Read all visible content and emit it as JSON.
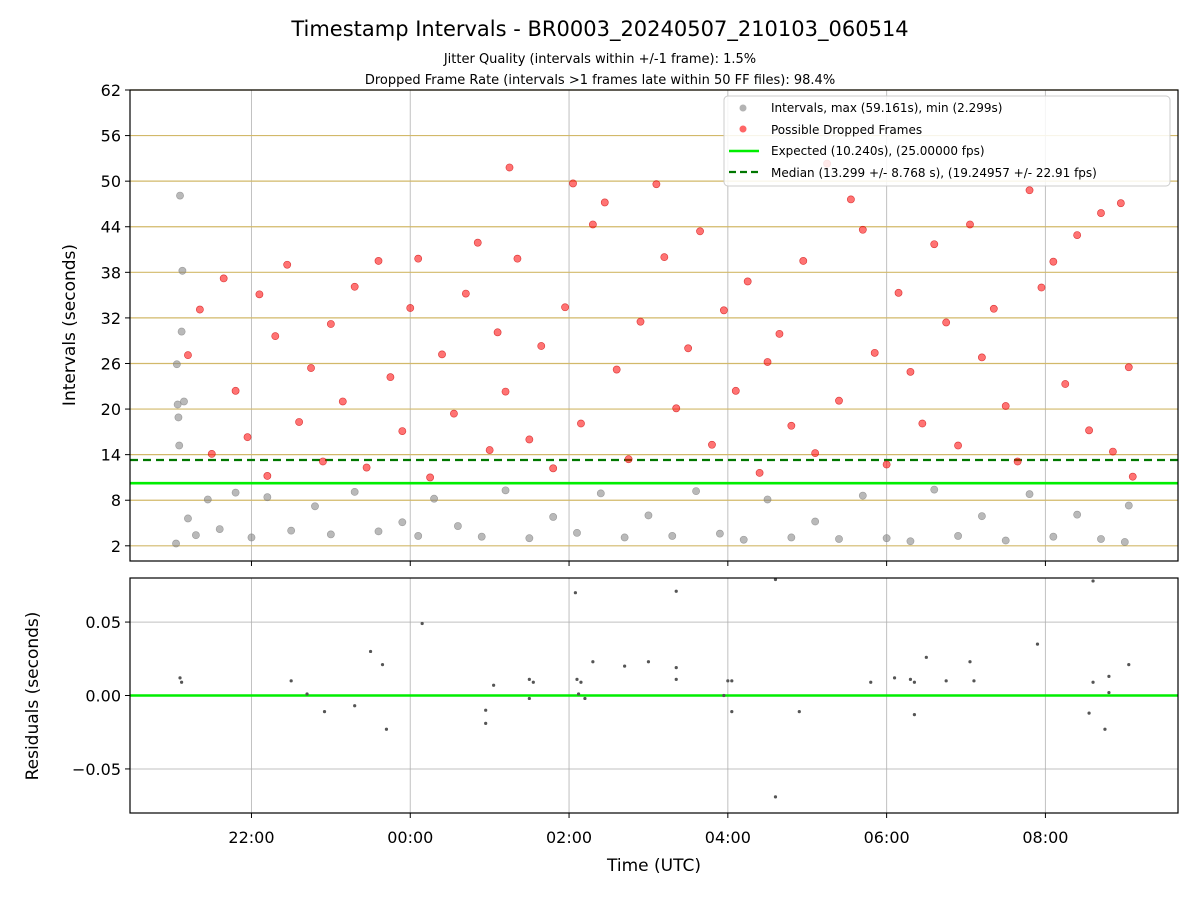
{
  "figure": {
    "title": "Timestamp Intervals - BR0003_20240507_210103_060514",
    "subtitle1": "Jitter Quality (intervals within +/-1 frame): 1.5%",
    "subtitle2": "Dropped Frame Rate (intervals >1 frames late within 50 FF files): 98.4%"
  },
  "chart_data": [
    {
      "type": "scatter",
      "ylabel": "Intervals (seconds)",
      "xlabel": "",
      "x_range_hours": [
        20.47,
        33.67
      ],
      "ylim": [
        0,
        62
      ],
      "yticks": [
        2,
        8,
        14,
        20,
        26,
        32,
        38,
        44,
        50,
        56,
        62
      ],
      "xticks": [
        {
          "value": 22,
          "label": "22:00"
        },
        {
          "value": 24,
          "label": "00:00"
        },
        {
          "value": 26,
          "label": "02:00"
        },
        {
          "value": 28,
          "label": "04:00"
        },
        {
          "value": 30,
          "label": "06:00"
        },
        {
          "value": 32,
          "label": "08:00"
        }
      ],
      "grid": true,
      "legend_position": "top-right",
      "legend": [
        {
          "label": "Intervals, max (59.161s), min (2.299s)",
          "style": "marker",
          "color": "#808080"
        },
        {
          "label": "Possible Dropped Frames",
          "style": "marker",
          "color": "#ff0000"
        },
        {
          "label": "Expected (10.240s), (25.00000 fps)",
          "style": "line",
          "color": "#00ee00"
        },
        {
          "label": "Median (13.299 +/- 8.768 s), (19.24957 +/- 22.91 fps)",
          "style": "dashed",
          "color": "#007700"
        }
      ],
      "reference_lines": {
        "expected": 10.24,
        "median": 13.299
      },
      "series": [
        {
          "name": "Intervals, max (59.161s), min (2.299s)",
          "color": "#808080",
          "points": [
            [
              21.05,
              2.3
            ],
            [
              21.06,
              25.9
            ],
            [
              21.07,
              20.6
            ],
            [
              21.08,
              18.9
            ],
            [
              21.09,
              15.2
            ],
            [
              21.1,
              48.1
            ],
            [
              21.12,
              30.2
            ],
            [
              21.13,
              38.2
            ],
            [
              21.15,
              21.0
            ],
            [
              21.2,
              5.6
            ],
            [
              21.3,
              3.4
            ],
            [
              21.45,
              8.1
            ],
            [
              21.6,
              4.2
            ],
            [
              21.8,
              9.0
            ],
            [
              22.0,
              3.1
            ],
            [
              22.2,
              8.4
            ],
            [
              22.5,
              4.0
            ],
            [
              22.8,
              7.2
            ],
            [
              23.0,
              3.5
            ],
            [
              23.3,
              9.1
            ],
            [
              23.6,
              3.9
            ],
            [
              23.9,
              5.1
            ],
            [
              24.1,
              3.3
            ],
            [
              24.3,
              8.2
            ],
            [
              24.6,
              4.6
            ],
            [
              24.9,
              3.2
            ],
            [
              25.2,
              9.3
            ],
            [
              25.5,
              3.0
            ],
            [
              25.8,
              5.8
            ],
            [
              26.1,
              3.7
            ],
            [
              26.4,
              8.9
            ],
            [
              26.7,
              3.1
            ],
            [
              27.0,
              6.0
            ],
            [
              27.3,
              3.3
            ],
            [
              27.6,
              9.2
            ],
            [
              27.9,
              3.6
            ],
            [
              28.2,
              2.8
            ],
            [
              28.5,
              8.1
            ],
            [
              28.8,
              3.1
            ],
            [
              29.1,
              5.2
            ],
            [
              29.4,
              2.9
            ],
            [
              29.7,
              8.6
            ],
            [
              30.0,
              3.0
            ],
            [
              30.3,
              2.6
            ],
            [
              30.6,
              9.4
            ],
            [
              30.9,
              3.3
            ],
            [
              31.2,
              5.9
            ],
            [
              31.5,
              2.7
            ],
            [
              31.8,
              8.8
            ],
            [
              32.1,
              3.2
            ],
            [
              32.4,
              6.1
            ],
            [
              32.7,
              2.9
            ],
            [
              33.0,
              2.5
            ],
            [
              33.05,
              7.3
            ]
          ]
        },
        {
          "name": "Possible Dropped Frames",
          "color": "#ff0000",
          "points": [
            [
              21.2,
              27.1
            ],
            [
              21.35,
              33.1
            ],
            [
              21.5,
              14.1
            ],
            [
              21.65,
              37.2
            ],
            [
              21.8,
              22.4
            ],
            [
              21.95,
              16.3
            ],
            [
              22.1,
              35.1
            ],
            [
              22.2,
              11.2
            ],
            [
              22.3,
              29.6
            ],
            [
              22.45,
              39.0
            ],
            [
              22.6,
              18.3
            ],
            [
              22.75,
              25.4
            ],
            [
              22.9,
              13.1
            ],
            [
              23.0,
              31.2
            ],
            [
              23.15,
              21.0
            ],
            [
              23.3,
              36.1
            ],
            [
              23.45,
              12.3
            ],
            [
              23.6,
              39.5
            ],
            [
              23.75,
              24.2
            ],
            [
              23.9,
              17.1
            ],
            [
              24.0,
              33.3
            ],
            [
              24.1,
              39.8
            ],
            [
              24.25,
              11.0
            ],
            [
              24.4,
              27.2
            ],
            [
              24.55,
              19.4
            ],
            [
              24.7,
              35.2
            ],
            [
              24.85,
              41.9
            ],
            [
              25.0,
              14.6
            ],
            [
              25.1,
              30.1
            ],
            [
              25.2,
              22.3
            ],
            [
              25.25,
              51.8
            ],
            [
              25.35,
              39.8
            ],
            [
              25.5,
              16.0
            ],
            [
              25.65,
              28.3
            ],
            [
              25.8,
              12.2
            ],
            [
              25.95,
              33.4
            ],
            [
              26.05,
              49.7
            ],
            [
              26.15,
              18.1
            ],
            [
              26.3,
              44.3
            ],
            [
              26.45,
              47.2
            ],
            [
              26.6,
              25.2
            ],
            [
              26.75,
              13.4
            ],
            [
              26.9,
              31.5
            ],
            [
              27.1,
              49.6
            ],
            [
              27.2,
              40.0
            ],
            [
              27.35,
              20.1
            ],
            [
              27.5,
              28.0
            ],
            [
              27.65,
              43.4
            ],
            [
              27.8,
              15.3
            ],
            [
              27.95,
              33.0
            ],
            [
              28.1,
              22.4
            ],
            [
              28.25,
              36.8
            ],
            [
              28.4,
              11.6
            ],
            [
              28.5,
              26.2
            ],
            [
              28.65,
              29.9
            ],
            [
              28.8,
              17.8
            ],
            [
              28.95,
              39.5
            ],
            [
              29.1,
              14.2
            ],
            [
              29.25,
              52.3
            ],
            [
              29.4,
              21.1
            ],
            [
              29.55,
              47.6
            ],
            [
              29.7,
              43.6
            ],
            [
              29.85,
              27.4
            ],
            [
              30.0,
              12.7
            ],
            [
              30.15,
              35.3
            ],
            [
              30.3,
              24.9
            ],
            [
              30.45,
              18.1
            ],
            [
              30.6,
              41.7
            ],
            [
              30.75,
              31.4
            ],
            [
              30.9,
              15.2
            ],
            [
              31.05,
              44.3
            ],
            [
              31.2,
              26.8
            ],
            [
              31.35,
              33.2
            ],
            [
              31.5,
              20.4
            ],
            [
              31.65,
              13.1
            ],
            [
              31.8,
              48.8
            ],
            [
              31.95,
              36.0
            ],
            [
              32.1,
              39.4
            ],
            [
              32.25,
              23.3
            ],
            [
              32.4,
              42.9
            ],
            [
              32.55,
              17.2
            ],
            [
              32.7,
              45.8
            ],
            [
              32.85,
              14.4
            ],
            [
              32.95,
              47.1
            ],
            [
              33.05,
              25.5
            ],
            [
              33.1,
              11.1
            ]
          ]
        }
      ]
    },
    {
      "type": "scatter",
      "ylabel": "Residuals (seconds)",
      "xlabel": "Time (UTC)",
      "x_range_hours": [
        20.47,
        33.67
      ],
      "ylim": [
        -0.08,
        0.08
      ],
      "yticks": [
        -0.05,
        0.0,
        0.05
      ],
      "ytick_labels": [
        "−0.05",
        "0.00",
        "0.05"
      ],
      "grid": true,
      "reference_lines": {
        "zero": 0.0
      },
      "series": [
        {
          "name": "Residuals",
          "color": "#555555",
          "points": [
            [
              21.1,
              0.012
            ],
            [
              21.12,
              0.009
            ],
            [
              22.5,
              0.01
            ],
            [
              22.7,
              0.001
            ],
            [
              22.92,
              -0.011
            ],
            [
              23.3,
              -0.007
            ],
            [
              23.5,
              0.03
            ],
            [
              23.65,
              0.021
            ],
            [
              23.7,
              -0.023
            ],
            [
              24.15,
              0.049
            ],
            [
              24.95,
              -0.01
            ],
            [
              24.95,
              -0.019
            ],
            [
              25.05,
              0.007
            ],
            [
              25.5,
              0.011
            ],
            [
              25.5,
              -0.002
            ],
            [
              25.55,
              0.009
            ],
            [
              26.08,
              0.07
            ],
            [
              26.1,
              0.011
            ],
            [
              26.15,
              0.009
            ],
            [
              26.12,
              0.001
            ],
            [
              26.2,
              -0.002
            ],
            [
              26.3,
              0.023
            ],
            [
              26.7,
              0.02
            ],
            [
              27.0,
              0.023
            ],
            [
              27.35,
              0.071
            ],
            [
              27.35,
              0.019
            ],
            [
              27.35,
              0.011
            ],
            [
              27.95,
              0.0
            ],
            [
              28.0,
              0.01
            ],
            [
              28.05,
              0.01
            ],
            [
              28.05,
              -0.011
            ],
            [
              28.6,
              0.079
            ],
            [
              28.6,
              -0.069
            ],
            [
              28.9,
              -0.011
            ],
            [
              29.8,
              0.009
            ],
            [
              30.1,
              0.012
            ],
            [
              30.3,
              0.011
            ],
            [
              30.35,
              0.009
            ],
            [
              30.35,
              -0.013
            ],
            [
              30.5,
              0.026
            ],
            [
              30.75,
              0.01
            ],
            [
              31.05,
              0.023
            ],
            [
              31.1,
              0.01
            ],
            [
              31.9,
              0.035
            ],
            [
              32.55,
              -0.012
            ],
            [
              32.6,
              0.078
            ],
            [
              32.6,
              0.009
            ],
            [
              32.75,
              -0.023
            ],
            [
              32.8,
              0.013
            ],
            [
              32.8,
              0.002
            ],
            [
              33.05,
              0.021
            ]
          ]
        }
      ]
    }
  ]
}
